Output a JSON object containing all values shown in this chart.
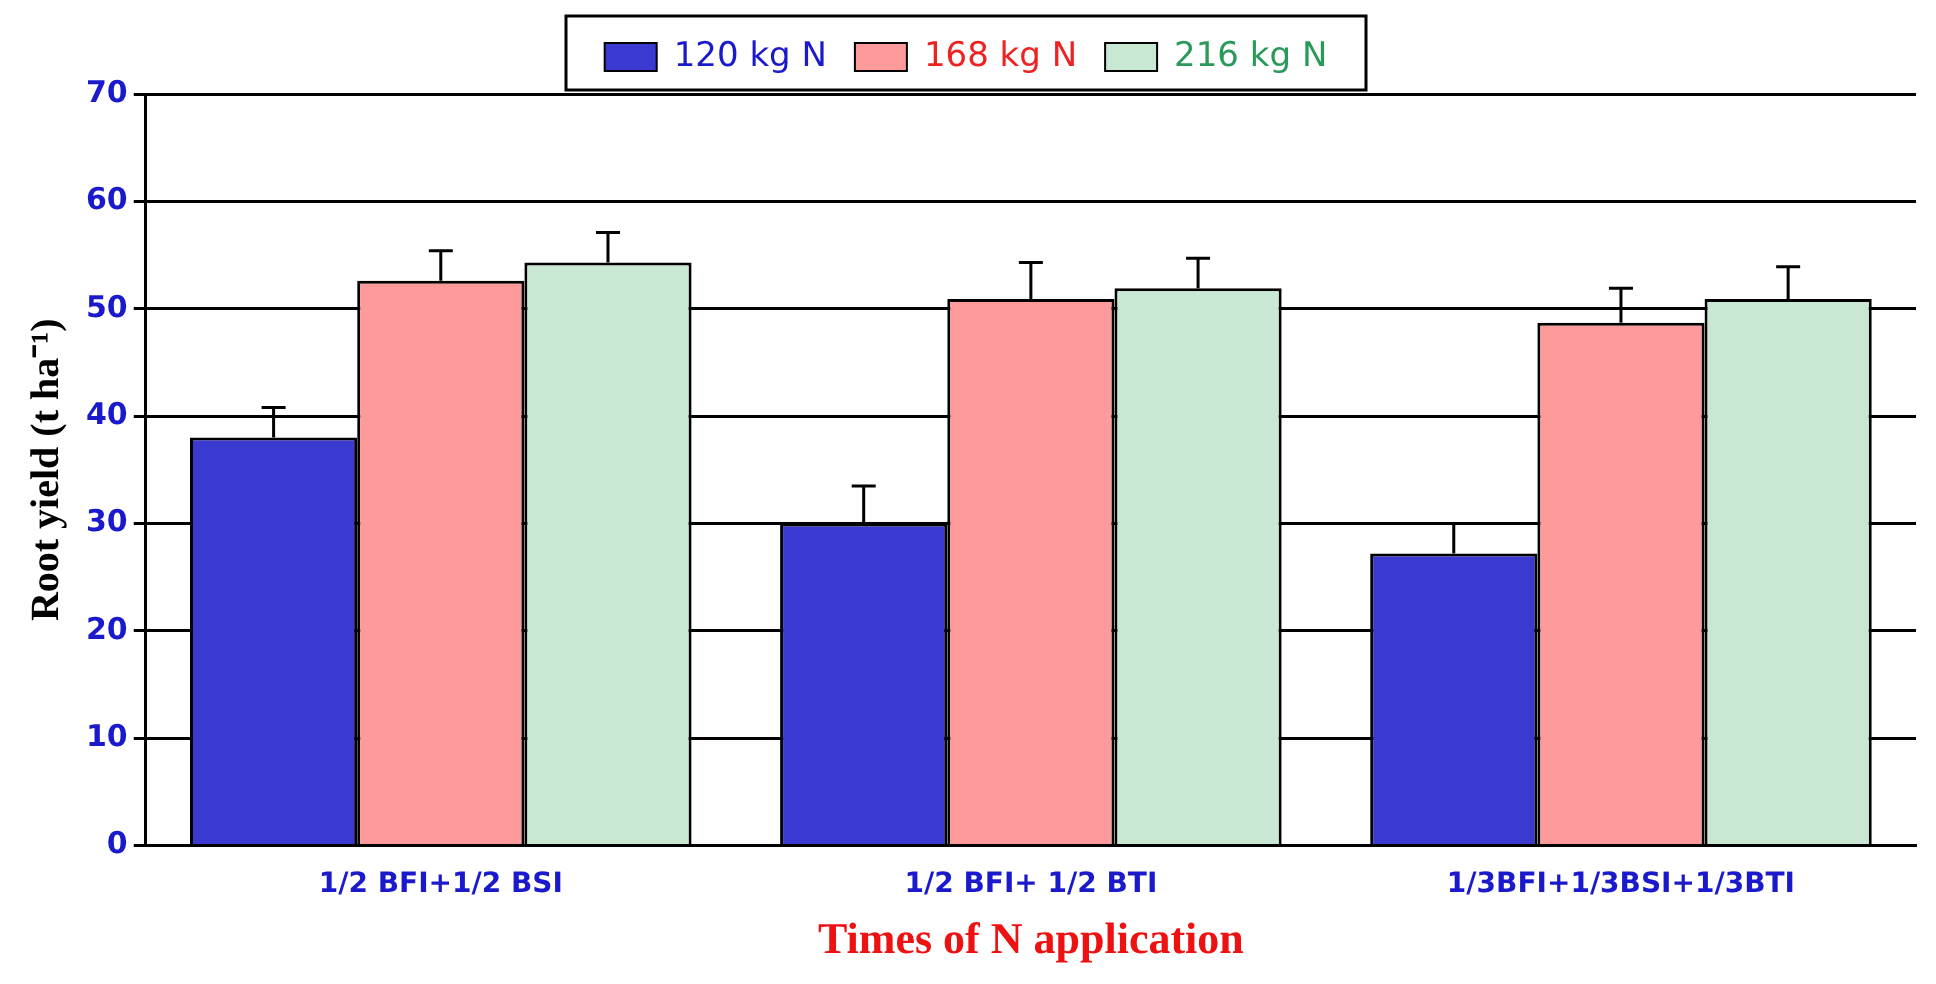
{
  "chart_data": {
    "type": "bar",
    "xlabel": "Times of N application",
    "ylabel": "Root yield (t ha⁻¹)",
    "categories": [
      "1/2 BFI+1/2 BSI",
      "1/2 BFI+ 1/2 BTI",
      "1/3BFI+1/3BSI+1/3BTI"
    ],
    "series": [
      {
        "name": "120 kg N",
        "color": "#3a3ad0",
        "values": [
          38,
          30,
          27.2
        ],
        "errors": [
          2.8,
          3.5,
          2.8
        ]
      },
      {
        "name": "168 kg N",
        "color": "#ff9a9a",
        "values": [
          52.6,
          50.9,
          48.7
        ],
        "errors": [
          2.8,
          3.4,
          3.2
        ]
      },
      {
        "name": "216 kg N",
        "color": "#c8e8d4",
        "values": [
          54.3,
          51.9,
          50.9
        ],
        "errors": [
          2.8,
          2.8,
          3
        ]
      }
    ],
    "ylim": [
      0,
      70
    ],
    "yticks": [
      0,
      10,
      20,
      30,
      40,
      50,
      60,
      70
    ],
    "grid": "y",
    "legend": "top"
  }
}
